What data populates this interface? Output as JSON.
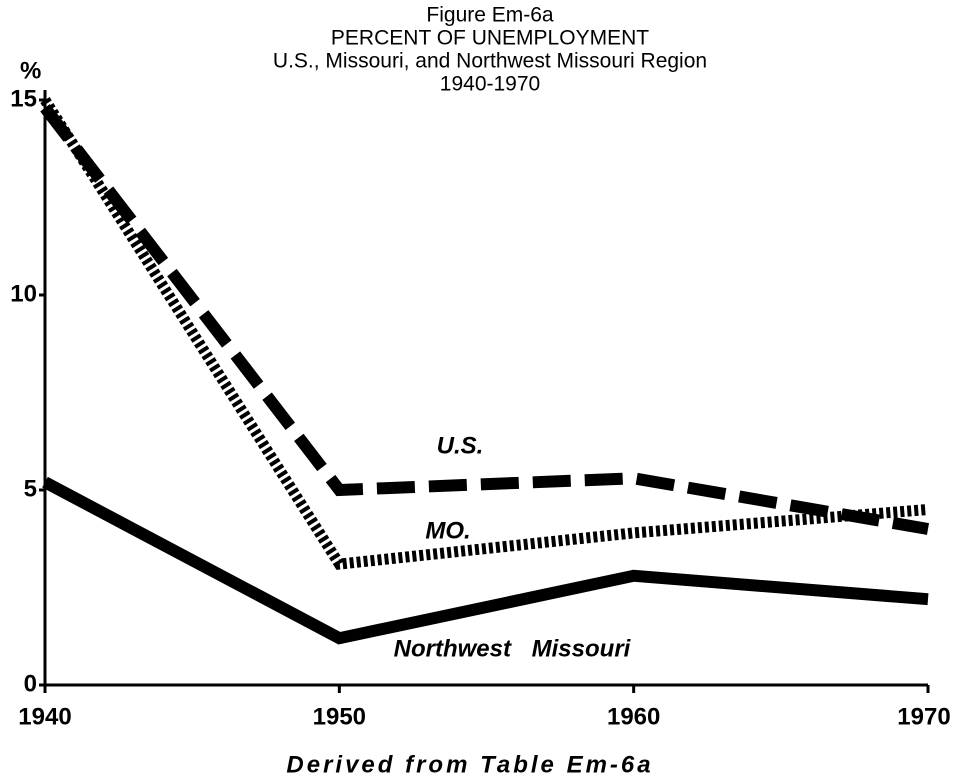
{
  "chart_data": {
    "type": "line",
    "title": [
      "Figure Em-6a",
      "PERCENT OF UNEMPLOYMENT",
      "U.S., Missouri, and Northwest Missouri Region",
      "1940-1970"
    ],
    "y_label": "%",
    "note": "Derived from Table Em-6a",
    "x": [
      1940,
      1950,
      1960,
      1970
    ],
    "xlim": [
      1940,
      1970
    ],
    "xticks": [
      1940,
      1950,
      1960,
      1970
    ],
    "ylim": [
      0,
      15
    ],
    "yticks": [
      0,
      5,
      10,
      15
    ],
    "series": [
      {
        "name": "U.S.",
        "color": "#000000",
        "style": "dashed",
        "values": [
          14.8,
          5.0,
          5.3,
          4.0
        ]
      },
      {
        "name": "MO.",
        "color": "#000000",
        "style": "dotted",
        "values": [
          15.0,
          3.1,
          3.9,
          4.5
        ]
      },
      {
        "name": "Northwest Missouri",
        "color": "#000000",
        "style": "solid",
        "values": [
          5.2,
          1.2,
          2.8,
          2.2
        ]
      }
    ]
  }
}
